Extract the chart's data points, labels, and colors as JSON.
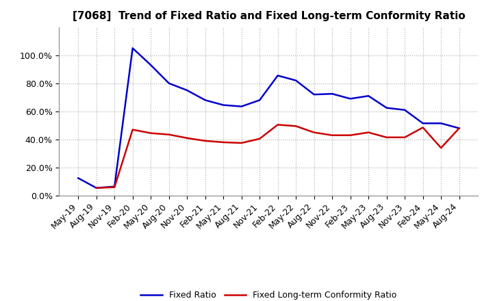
{
  "title": "[7068]  Trend of Fixed Ratio and Fixed Long-term Conformity Ratio",
  "x_labels": [
    "May-19",
    "Aug-19",
    "Nov-19",
    "Feb-20",
    "May-20",
    "Aug-20",
    "Nov-20",
    "Feb-21",
    "May-21",
    "Aug-21",
    "Nov-21",
    "Feb-22",
    "May-22",
    "Aug-22",
    "Nov-22",
    "Feb-23",
    "May-23",
    "Aug-23",
    "Nov-23",
    "Feb-24",
    "May-24",
    "Aug-24"
  ],
  "fixed_ratio": [
    12.5,
    5.5,
    6.5,
    105.0,
    93.0,
    80.0,
    75.0,
    68.0,
    64.5,
    63.5,
    68.0,
    85.5,
    82.0,
    72.0,
    72.5,
    69.0,
    71.0,
    62.5,
    61.0,
    51.5,
    51.5,
    48.0
  ],
  "fixed_lt_ratio": [
    null,
    5.5,
    6.0,
    47.0,
    44.5,
    43.5,
    41.0,
    39.0,
    38.0,
    37.5,
    40.5,
    50.5,
    49.5,
    45.0,
    43.0,
    43.0,
    45.0,
    41.5,
    41.5,
    48.5,
    34.0,
    48.0
  ],
  "fixed_ratio_color": "#0000cc",
  "fixed_lt_ratio_color": "#cc0000",
  "background_color": "#ffffff",
  "grid_color": "#aaaaaa",
  "ylim": [
    0,
    120
  ],
  "yticks": [
    0,
    20,
    40,
    60,
    80,
    100
  ],
  "legend_labels": [
    "Fixed Ratio",
    "Fixed Long-term Conformity Ratio"
  ],
  "title_fontsize": 11,
  "tick_fontsize": 9,
  "legend_fontsize": 9
}
